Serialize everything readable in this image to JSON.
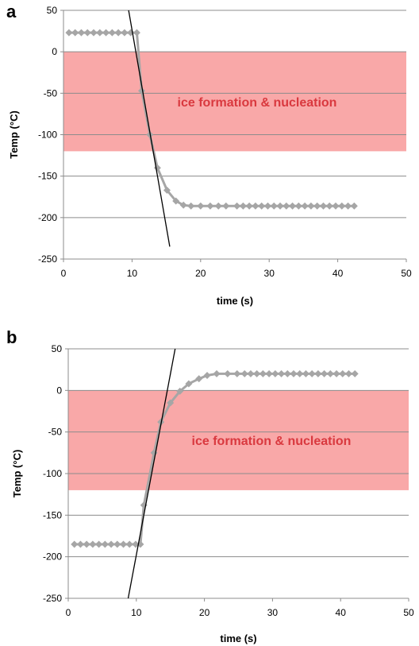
{
  "chart_data": [
    {
      "panel": "a",
      "type": "line",
      "xlabel": "time (s)",
      "ylabel": "Temp (°C)",
      "xlim": [
        0,
        50
      ],
      "ylim": [
        -250,
        50
      ],
      "xticks": [
        "0",
        "10",
        "20",
        "30",
        "40",
        "50"
      ],
      "yticks": [
        "50",
        "0",
        "-50",
        "-100",
        "-150",
        "-200",
        "-250"
      ],
      "grid": "horizontal",
      "band": {
        "label": "ice formation & nucleation",
        "y_range": [
          -120,
          0
        ],
        "color": "#f9a8a8"
      },
      "fit_line": {
        "points": [
          [
            9.5,
            50
          ],
          [
            15.5,
            -235
          ]
        ],
        "color": "#000000"
      },
      "series": [
        {
          "color": "#a6a6a6",
          "x": [
            0.8,
            1.7,
            2.6,
            3.5,
            4.4,
            5.3,
            6.2,
            7.1,
            8.0,
            8.9,
            9.8,
            10.7,
            11.4,
            12.6,
            13.7,
            15.1,
            16.4,
            17.5,
            18.6,
            20.0,
            21.4,
            22.6,
            23.7,
            25.3,
            26.2,
            27.1,
            28.0,
            28.9,
            29.8,
            30.7,
            31.6,
            32.5,
            33.4,
            34.3,
            35.2,
            36.1,
            37.0,
            37.9,
            38.8,
            39.7,
            40.6,
            41.5,
            42.4
          ],
          "y": [
            23,
            23,
            23,
            23,
            23,
            23,
            23,
            23,
            23,
            23,
            23,
            23,
            -47,
            -100,
            -140,
            -167,
            -180,
            -185,
            -186,
            -186,
            -186,
            -186,
            -186,
            -186,
            -186,
            -186,
            -186,
            -186,
            -186,
            -186,
            -186,
            -186,
            -186,
            -186,
            -186,
            -186,
            -186,
            -186,
            -186,
            -186,
            -186,
            -186,
            -186
          ]
        }
      ]
    },
    {
      "panel": "b",
      "type": "line",
      "xlabel": "time (s)",
      "ylabel": "Temp (°C)",
      "xlim": [
        0,
        50
      ],
      "ylim": [
        -250,
        50
      ],
      "xticks": [
        "0",
        "10",
        "20",
        "30",
        "40",
        "50"
      ],
      "yticks": [
        "50",
        "0",
        "-50",
        "-100",
        "-150",
        "-200",
        "-250"
      ],
      "grid": "horizontal",
      "band": {
        "label": "ice formation & nucleation",
        "y_range": [
          -120,
          0
        ],
        "color": "#f9a8a8"
      },
      "fit_line": {
        "points": [
          [
            8.8,
            -250
          ],
          [
            15.7,
            50
          ]
        ],
        "color": "#000000"
      },
      "series": [
        {
          "color": "#a6a6a6",
          "x": [
            0.9,
            1.8,
            2.7,
            3.6,
            4.5,
            5.4,
            6.3,
            7.2,
            8.1,
            9.0,
            9.9,
            10.6,
            11.1,
            12.6,
            13.6,
            15.0,
            16.4,
            17.7,
            19.2,
            20.4,
            21.8,
            23.4,
            24.8,
            25.9,
            26.8,
            27.7,
            28.6,
            29.5,
            30.4,
            31.3,
            32.2,
            33.1,
            34.0,
            34.9,
            35.8,
            36.7,
            37.6,
            38.5,
            39.4,
            40.3,
            41.2,
            42.1
          ],
          "y": [
            -185,
            -185,
            -185,
            -185,
            -185,
            -185,
            -185,
            -185,
            -185,
            -185,
            -185,
            -185,
            -138,
            -75,
            -38,
            -15,
            -1,
            8,
            14,
            18,
            20,
            20,
            20,
            20,
            20,
            20,
            20,
            20,
            20,
            20,
            20,
            20,
            20,
            20,
            20,
            20,
            20,
            20,
            20,
            20,
            20,
            20
          ]
        }
      ]
    }
  ]
}
